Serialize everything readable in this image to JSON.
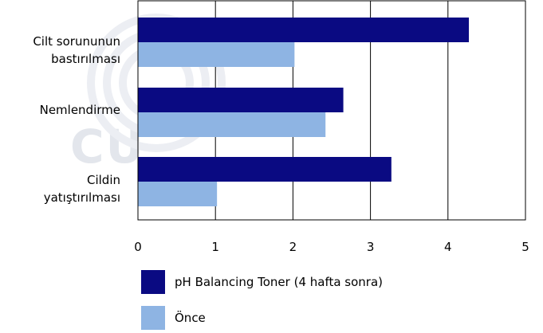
{
  "chart_data": {
    "type": "bar",
    "orientation": "horizontal",
    "categories": [
      "Cilt sorununun bastırılması",
      "Nemlendirme",
      "Cildin yatıştırılması"
    ],
    "category_lines": [
      [
        "Cilt sorununun",
        "bastırılması"
      ],
      [
        "Nemlendirme"
      ],
      [
        "Cildin",
        "yatıştırılması"
      ]
    ],
    "series": [
      {
        "name": "pH Balancing Toner (4 hafta sonra)",
        "values": [
          4.27,
          2.65,
          3.27
        ],
        "color": "#0a0a82"
      },
      {
        "name": "Önce",
        "values": [
          2.02,
          2.42,
          1.02
        ],
        "color": "#8eb4e3"
      }
    ],
    "xlim": [
      0,
      5
    ],
    "xticks": [
      "0",
      "1",
      "2",
      "3",
      "4",
      "5"
    ],
    "grid": "vertical",
    "legend_position": "bottom-left"
  },
  "watermark": "CU"
}
